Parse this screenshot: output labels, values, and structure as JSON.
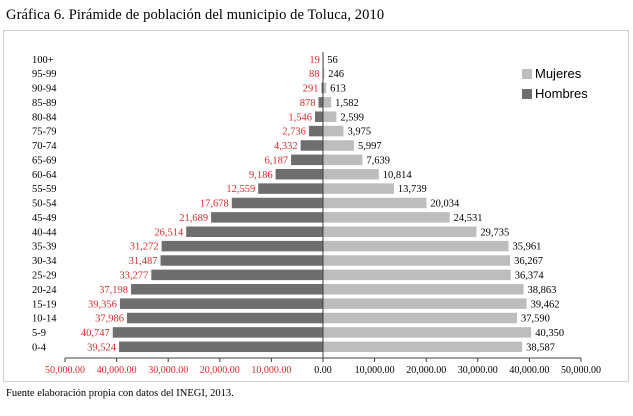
{
  "chart_data": {
    "type": "bar",
    "orientation": "horizontal",
    "title": "Gráfica 6. Pirámide de población del municipio de Toluca, 2010",
    "source": "Fuente elaboración propia con datos del INEGI, 2013.",
    "categories": [
      "100+",
      "95-99",
      "90-94",
      "85-89",
      "80-84",
      "75-79",
      "70-74",
      "65-69",
      "60-64",
      "55-59",
      "50-54",
      "45-49",
      "40-44",
      "35-39",
      "30-34",
      "25-29",
      "20-24",
      "15-19",
      "10-14",
      "5-9",
      "0-4"
    ],
    "series": [
      {
        "name": "Hombres",
        "color": "#6e6e6e",
        "label_color": "#d92b2b",
        "values": [
          19,
          88,
          291,
          878,
          1546,
          2736,
          4332,
          6187,
          9186,
          12559,
          17678,
          21689,
          26514,
          31272,
          31487,
          33277,
          37198,
          39356,
          37986,
          40747,
          39524
        ],
        "labels": [
          "19",
          "88",
          "291",
          "878",
          "1,546",
          "2,736",
          "4,332",
          "6,187",
          "9,186",
          "12,559",
          "17,678",
          "21,689",
          "26,514",
          "31,272",
          "31,487",
          "33,277",
          "37,198",
          "39,356",
          "37,986",
          "40,747",
          "39,524"
        ]
      },
      {
        "name": "Mujeres",
        "color": "#bdbdbd",
        "label_color": "#000000",
        "values": [
          56,
          246,
          613,
          1582,
          2599,
          3975,
          5997,
          7639,
          10814,
          13739,
          20034,
          24531,
          29735,
          35961,
          36267,
          36374,
          38863,
          39462,
          37590,
          40350,
          38587
        ],
        "labels": [
          "56",
          "246",
          "613",
          "1,582",
          "2,599",
          "3,975",
          "5,997",
          "7,639",
          "10,814",
          "13,739",
          "20,034",
          "24,531",
          "29,735",
          "35,961",
          "36,267",
          "36,374",
          "38,863",
          "39,462",
          "37,590",
          "40,350",
          "38,587"
        ]
      }
    ],
    "legend": [
      "Mujeres",
      "Hombres"
    ],
    "legend_position": "right",
    "xlim": [
      -50000,
      50000
    ],
    "xticks": [
      -50000,
      -40000,
      -30000,
      -20000,
      -10000,
      0,
      10000,
      20000,
      30000,
      40000,
      50000
    ],
    "xtick_labels": [
      "50,000.00",
      "40,000.00",
      "30,000.00",
      "20,000.00",
      "10,000.00",
      "0.00",
      "10,000.00",
      "20,000.00",
      "30,000.00",
      "40,000.00",
      "50,000.00"
    ],
    "negative_tick_color": "#d92b2b",
    "grid": false
  }
}
